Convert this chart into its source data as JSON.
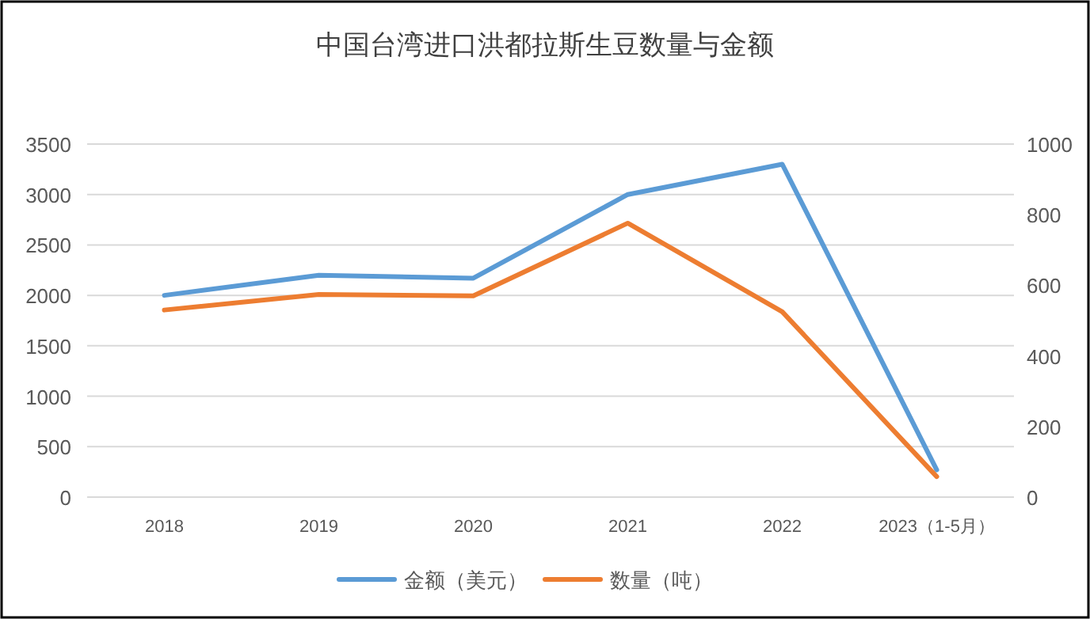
{
  "chart_data": {
    "type": "line",
    "title": "中国台湾进口洪都拉斯生豆数量与金额",
    "categories": [
      "2018",
      "2019",
      "2020",
      "2021",
      "2022",
      "2023（1-5月）"
    ],
    "series": [
      {
        "name": "金额（美元）",
        "color": "#5b9bd5",
        "values": [
          2000,
          2200,
          2170,
          3000,
          3300,
          270
        ]
      },
      {
        "name": "数量（吨）",
        "color": "#ed7d31",
        "axis": "y2",
        "values": [
          530,
          574,
          570,
          776,
          525,
          58
        ]
      }
    ],
    "ylim": [
      0,
      3500
    ],
    "yticks": [
      0,
      500,
      1000,
      1500,
      2000,
      2500,
      3000,
      3500
    ],
    "y2lim": [
      0,
      1000
    ],
    "y2ticks": [
      0,
      200,
      400,
      600,
      800,
      1000
    ],
    "grid": "y",
    "legend": "bottom",
    "marker": "none",
    "line_style": "solid"
  }
}
